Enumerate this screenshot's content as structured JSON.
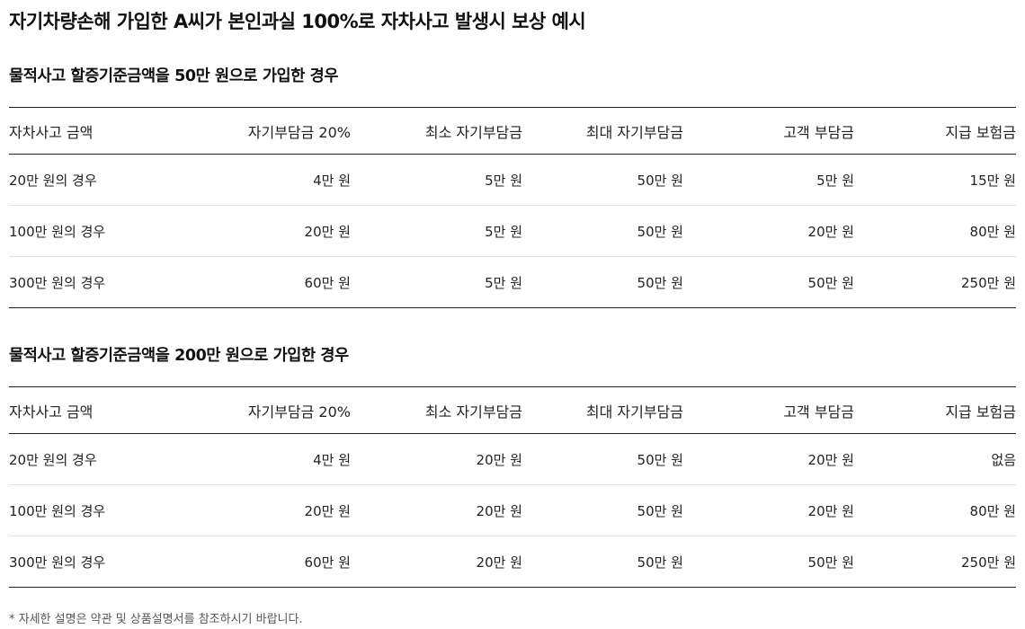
{
  "title": "자기차량손해 가입한 A씨가 본인과실 100%로 자차사고 발생시 보상 예시",
  "headers": [
    "자차사고 금액",
    "자기부담금 20%",
    "최소 자기부담금",
    "최대 자기부담금",
    "고객 부담금",
    "지급 보험금"
  ],
  "sections": [
    {
      "title": "물적사고 할증기준금액을 50만 원으로 가입한 경우",
      "rows": [
        [
          "20만 원의 경우",
          "4만 원",
          "5만 원",
          "50만 원",
          "5만 원",
          "15만 원"
        ],
        [
          "100만 원의 경우",
          "20만 원",
          "5만 원",
          "50만 원",
          "20만 원",
          "80만 원"
        ],
        [
          "300만 원의 경우",
          "60만 원",
          "5만 원",
          "50만 원",
          "50만 원",
          "250만 원"
        ]
      ]
    },
    {
      "title": "물적사고 할증기준금액을 200만 원으로 가입한 경우",
      "rows": [
        [
          "20만 원의 경우",
          "4만 원",
          "20만 원",
          "50만 원",
          "20만 원",
          "없음"
        ],
        [
          "100만 원의 경우",
          "20만 원",
          "20만 원",
          "50만 원",
          "20만 원",
          "80만 원"
        ],
        [
          "300만 원의 경우",
          "60만 원",
          "20만 원",
          "50만 원",
          "50만 원",
          "250만 원"
        ]
      ]
    }
  ],
  "footnote": "* 자세한 설명은 약관 및 상품설명서를 참조하시기 바랍니다."
}
